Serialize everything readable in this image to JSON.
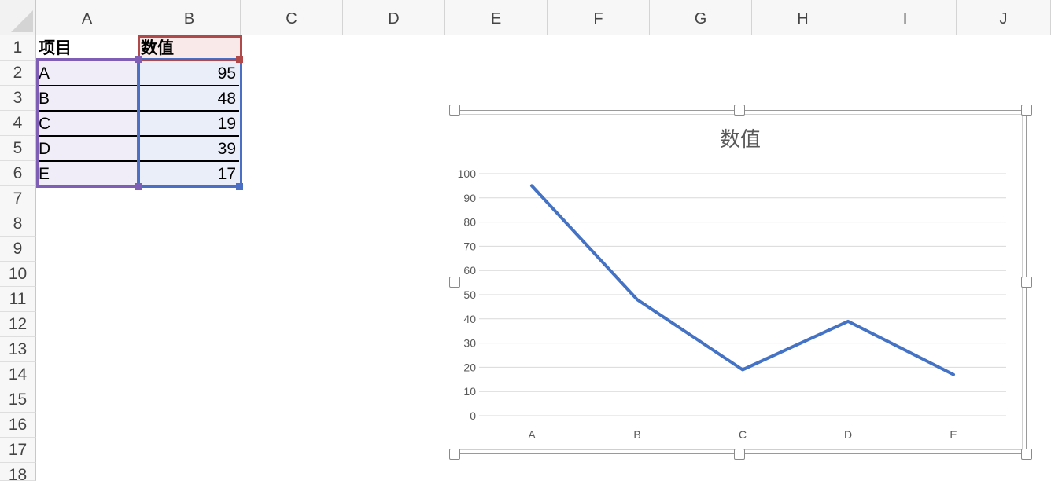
{
  "columns": [
    "A",
    "B",
    "C",
    "D",
    "E",
    "F",
    "G",
    "H",
    "I",
    "J"
  ],
  "rows": [
    "1",
    "2",
    "3",
    "4",
    "5",
    "6",
    "7",
    "8",
    "9",
    "10",
    "11",
    "12",
    "13",
    "14",
    "15",
    "16",
    "17",
    "18"
  ],
  "table": {
    "header": {
      "item": "项目",
      "value": "数值"
    },
    "items": [
      {
        "label": "A",
        "value": "95"
      },
      {
        "label": "B",
        "value": "48"
      },
      {
        "label": "C",
        "value": "19"
      },
      {
        "label": "D",
        "value": "39"
      },
      {
        "label": "E",
        "value": "17"
      }
    ]
  },
  "colors": {
    "series": "#4472c4",
    "range_label": "#7f5fb5",
    "range_value": "#4a6fc4",
    "range_header": "#b04a4a",
    "gridline": "#d9d9d9"
  },
  "chart_data": {
    "type": "line",
    "title": "数值",
    "categories": [
      "A",
      "B",
      "C",
      "D",
      "E"
    ],
    "series": [
      {
        "values": [
          95,
          48,
          19,
          39,
          17
        ]
      }
    ],
    "ylim": [
      0,
      100
    ],
    "yticks": [
      0,
      10,
      20,
      30,
      40,
      50,
      60,
      70,
      80,
      90,
      100
    ],
    "grid": true,
    "legend": "none"
  }
}
